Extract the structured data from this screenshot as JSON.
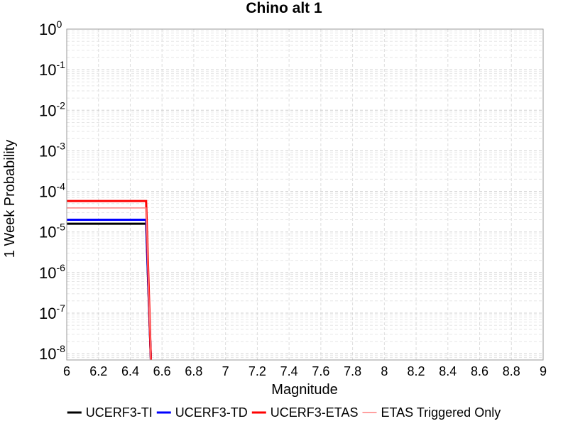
{
  "chart_data": {
    "type": "line",
    "title": "Chino alt 1",
    "xlabel": "Magnitude",
    "ylabel": "1 Week Probability",
    "xlim": [
      6,
      9
    ],
    "ylim": [
      7e-09,
      1
    ],
    "yscale": "log",
    "grid": true,
    "legend_position": "bottom",
    "x_ticks": [
      "6",
      "6.2",
      "6.4",
      "6.6",
      "6.8",
      "7",
      "7.2",
      "7.4",
      "7.6",
      "7.8",
      "8",
      "8.2",
      "8.4",
      "8.6",
      "8.8",
      "9"
    ],
    "y_ticks": [
      {
        "base": "10",
        "exp": "0"
      },
      {
        "base": "10",
        "exp": "-1"
      },
      {
        "base": "10",
        "exp": "-2"
      },
      {
        "base": "10",
        "exp": "-3"
      },
      {
        "base": "10",
        "exp": "-4"
      },
      {
        "base": "10",
        "exp": "-5"
      },
      {
        "base": "10",
        "exp": "-6"
      },
      {
        "base": "10",
        "exp": "-7"
      },
      {
        "base": "10",
        "exp": "-8"
      }
    ],
    "series": [
      {
        "name": "UCERF3-TI",
        "color": "#000000",
        "width": 3,
        "x": [
          6,
          6.5,
          6.53
        ],
        "y": [
          1.6e-05,
          1.6e-05,
          7e-09
        ]
      },
      {
        "name": "UCERF3-TD",
        "color": "#0000ff",
        "width": 3,
        "x": [
          6,
          6.5,
          6.53
        ],
        "y": [
          2e-05,
          2e-05,
          7e-09
        ]
      },
      {
        "name": "UCERF3-ETAS",
        "color": "#ff0000",
        "width": 3,
        "x": [
          6,
          6.5,
          6.53
        ],
        "y": [
          5.8e-05,
          5.8e-05,
          7e-09
        ]
      },
      {
        "name": "ETAS Triggered Only",
        "color": "#ff8080",
        "width": 1.5,
        "x": [
          6,
          6.5,
          6.53
        ],
        "y": [
          3.9e-05,
          3.9e-05,
          7e-09
        ]
      }
    ]
  }
}
